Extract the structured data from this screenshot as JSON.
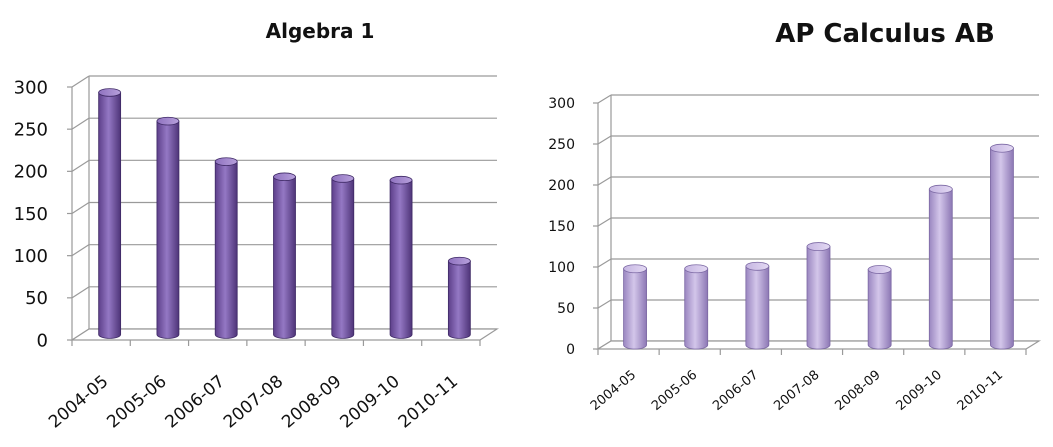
{
  "chart_data": [
    {
      "type": "bar",
      "title": "Algebra 1",
      "categories": [
        "2004-05",
        "2005-06",
        "2006-07",
        "2007-08",
        "2008-09",
        "2009-10",
        "2010-11"
      ],
      "values": [
        287,
        253,
        205,
        187,
        185,
        183,
        87
      ],
      "xlabel": "",
      "ylabel": "",
      "ylim": [
        0,
        300
      ],
      "yticks": [
        "0",
        "50",
        "100",
        "150",
        "200",
        "250",
        "300"
      ],
      "grid": true,
      "legend": "none",
      "bar_color": "#7a5aa8"
    },
    {
      "type": "bar",
      "title": "AP Calculus AB",
      "categories": [
        "2004-05",
        "2005-06",
        "2006-07",
        "2007-08",
        "2008-09",
        "2009-10",
        "2010-11"
      ],
      "values": [
        93,
        93,
        96,
        120,
        92,
        190,
        240
      ],
      "xlabel": "",
      "ylabel": "",
      "ylim": [
        0,
        300
      ],
      "yticks": [
        "0",
        "50",
        "100",
        "150",
        "200",
        "250",
        "300"
      ],
      "grid": true,
      "legend": "none",
      "bar_color": "#b8a6d6"
    }
  ]
}
